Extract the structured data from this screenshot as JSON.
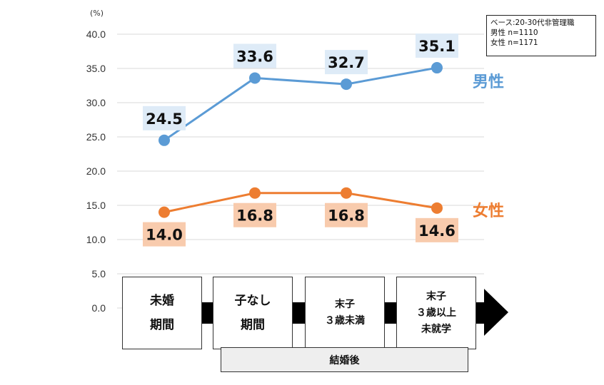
{
  "chart_data": {
    "type": "line",
    "unit_label": "(%)",
    "ylim": [
      0,
      40
    ],
    "yticks": [
      "40.0",
      "35.0",
      "30.0",
      "25.0",
      "20.0",
      "15.0",
      "10.0",
      "5.0",
      "0.0"
    ],
    "ytick_values": [
      40,
      35,
      30,
      25,
      20,
      15,
      10,
      5,
      0
    ],
    "grid": true,
    "categories": [
      "未婚期間",
      "子なし期間",
      "末子３歳未満",
      "末子３歳以上未就学"
    ],
    "series": [
      {
        "name": "男性",
        "color": "#5b9bd5",
        "label_bg": "#deebf7",
        "values": [
          24.5,
          33.6,
          32.7,
          35.1
        ],
        "labels": [
          "24.5",
          "33.6",
          "32.7",
          "35.1"
        ]
      },
      {
        "name": "女性",
        "color": "#ed7d31",
        "label_bg": "#f8cbad",
        "values": [
          14.0,
          16.8,
          16.8,
          14.6
        ],
        "labels": [
          "14.0",
          "16.8",
          "16.8",
          "14.6"
        ]
      }
    ]
  },
  "info_box": {
    "line1": "ベース:20-30代非管理職",
    "line2": "男性 n=1110",
    "line3": "女性 n=1171"
  },
  "stages": {
    "s1_line1": "未婚",
    "s1_line2": "期間",
    "s2_line1": "子なし",
    "s2_line2": "期間",
    "s3_line1": "末子",
    "s3_line2": "３歳未満",
    "s4_line1": "末子",
    "s4_line2": "３歳以上",
    "s4_line3": "未就学"
  },
  "married_label": "結婚後",
  "colors": {
    "grid": "#d9d9d9",
    "connector": "#000000"
  }
}
